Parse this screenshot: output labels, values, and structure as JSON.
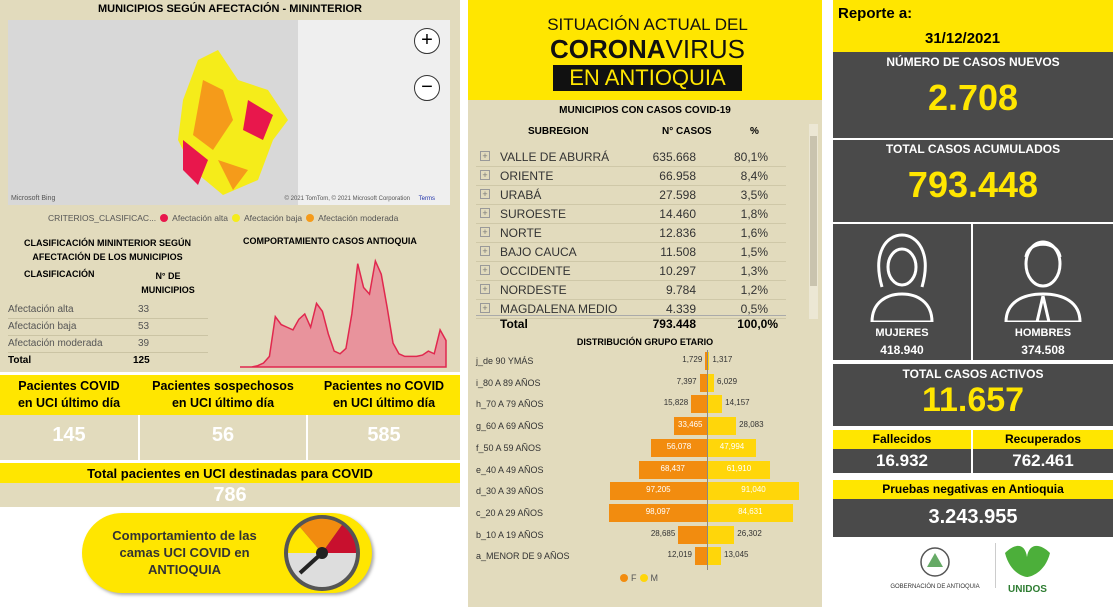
{
  "map": {
    "title": "MUNICIPIOS SEGÚN AFECTACIÓN - MININTERIOR",
    "zoom_in": "+",
    "zoom_out": "−",
    "bing": "Microsoft Bing",
    "copyright": "© 2021 TomTom, © 2021 Microsoft Corporation",
    "terms": "Terms",
    "legend_title": "CRITERIOS_CLASIFICAC...",
    "legend": [
      {
        "label": "Afectación alta",
        "color": "#e8174c"
      },
      {
        "label": "Afectación baja",
        "color": "#f5ec1a"
      },
      {
        "label": "Afectación moderada",
        "color": "#f59b1a"
      }
    ]
  },
  "classification": {
    "title1": "CLASIFICACIÓN MININTERIOR SEGÚN",
    "title2": "AFECTACIÓN DE LOS MUNICIPIOS",
    "col1": "CLASIFICACIÓN",
    "col2a": "N° DE",
    "col2b": "MUNICIPIOS",
    "rows": [
      {
        "label": "Afectación alta",
        "value": "33"
      },
      {
        "label": "Afectación baja",
        "value": "53"
      },
      {
        "label": "Afectación moderada",
        "value": "39"
      }
    ],
    "total_label": "Total",
    "total_value": "125"
  },
  "trend": {
    "title": "COMPORTAMIENTO CASOS ANTIOQUIA",
    "color": "#e0284e"
  },
  "uci": {
    "items": [
      {
        "label1": "Pacientes COVID",
        "label2": "en UCI último día",
        "value": "145"
      },
      {
        "label1": "Pacientes sospechosos",
        "label2": "en UCI último día",
        "value": "56"
      },
      {
        "label1": "Pacientes no COVID",
        "label2": "en UCI último día",
        "value": "585"
      }
    ],
    "total_label": "Total pacientes en UCI destinadas para COVID",
    "total_value": "786",
    "banner": [
      "Comportamiento de las",
      "camas UCI COVID en",
      "ANTIOQUIA"
    ]
  },
  "header": {
    "line1": "SITUACIÓN ACTUAL DEL",
    "line2a": "CORONA",
    "line2b": "VIRUS",
    "line3": "EN ANTIOQUIA"
  },
  "municipios": {
    "title": "MUNICIPIOS CON CASOS COVID-19",
    "cols": [
      "SUBREGION",
      "N° CASOS",
      "%"
    ],
    "rows": [
      {
        "name": "VALLE DE ABURRÁ",
        "cases": "635.668",
        "pct": "80,1%"
      },
      {
        "name": "ORIENTE",
        "cases": "66.958",
        "pct": "8,4%"
      },
      {
        "name": "URABÁ",
        "cases": "27.598",
        "pct": "3,5%"
      },
      {
        "name": "SUROESTE",
        "cases": "14.460",
        "pct": "1,8%"
      },
      {
        "name": "NORTE",
        "cases": "12.836",
        "pct": "1,6%"
      },
      {
        "name": "BAJO CAUCA",
        "cases": "11.508",
        "pct": "1,5%"
      },
      {
        "name": "OCCIDENTE",
        "cases": "10.297",
        "pct": "1,3%"
      },
      {
        "name": "NORDESTE",
        "cases": "9.784",
        "pct": "1,2%"
      },
      {
        "name": "MAGDALENA MEDIO",
        "cases": "4.339",
        "pct": "0,5%"
      }
    ],
    "total_label": "Total",
    "total_cases": "793.448",
    "total_pct": "100,0%"
  },
  "chart_data": [
    {
      "type": "bar",
      "title": "DISTRIBUCIÓN GRUPO ETARIO",
      "orientation": "horizontal-pyramid",
      "categories": [
        "j_de 90 YMÁS",
        "i_80 A 89 AÑOS",
        "h_70 A 79 AÑOS",
        "g_60 A 69 AÑOS",
        "f_50 A 59 AÑOS",
        "e_40 A 49 AÑOS",
        "d_30 A 39 AÑOS",
        "c_20 A 29 AÑOS",
        "b_10 A 19 AÑOS",
        "a_MENOR DE 9 AÑOS"
      ],
      "series": [
        {
          "name": "F",
          "color": "#f28c0f",
          "values": [
            1729,
            7397,
            15828,
            33465,
            56078,
            68437,
            97205,
            98097,
            28685,
            12019
          ],
          "labels": [
            "1,729",
            "7,397",
            "15,828",
            "33,465",
            "56,078",
            "68,437",
            "97,205",
            "98,097",
            "28,685",
            "12,019"
          ]
        },
        {
          "name": "M",
          "color": "#ffd60a",
          "values": [
            1317,
            6029,
            14157,
            28083,
            47994,
            61910,
            91040,
            84631,
            26302,
            13045
          ],
          "labels": [
            "1,317",
            "6,029",
            "14,157",
            "28,083",
            "47,994",
            "61,910",
            "91,040",
            "84,631",
            "26,302",
            "13,045"
          ]
        }
      ],
      "legend": "bottom"
    },
    {
      "type": "area",
      "title": "COMPORTAMIENTO CASOS ANTIOQUIA",
      "values": [
        0,
        0,
        0,
        1,
        3,
        8,
        38,
        32,
        30,
        28,
        36,
        40,
        30,
        48,
        42,
        25,
        12,
        10,
        14,
        40,
        78,
        60,
        55,
        80,
        70,
        45,
        18,
        10,
        8,
        8,
        8,
        9,
        12,
        10,
        28,
        20
      ]
    }
  ],
  "report": {
    "label": "Reporte a:",
    "date": "31/12/2021"
  },
  "kpis": {
    "new_label": "NÚMERO DE CASOS NUEVOS",
    "new_value": "2.708",
    "acc_label": "TOTAL CASOS ACUMULADOS",
    "acc_value": "793.448",
    "women_label": "MUJERES",
    "women_value": "418.940",
    "men_label": "HOMBRES",
    "men_value": "374.508",
    "active_label": "TOTAL CASOS ACTIVOS",
    "active_value": "11.657",
    "dead_label": "Fallecidos",
    "dead_value": "16.932",
    "rec_label": "Recuperados",
    "rec_value": "762.461",
    "neg_label": "Pruebas negativas en Antioquia",
    "neg_value": "3.243.955"
  },
  "footer": {
    "gov": "GOBERNACIÓN DE ANTIOQUIA",
    "unidos": "UNIDOS"
  }
}
